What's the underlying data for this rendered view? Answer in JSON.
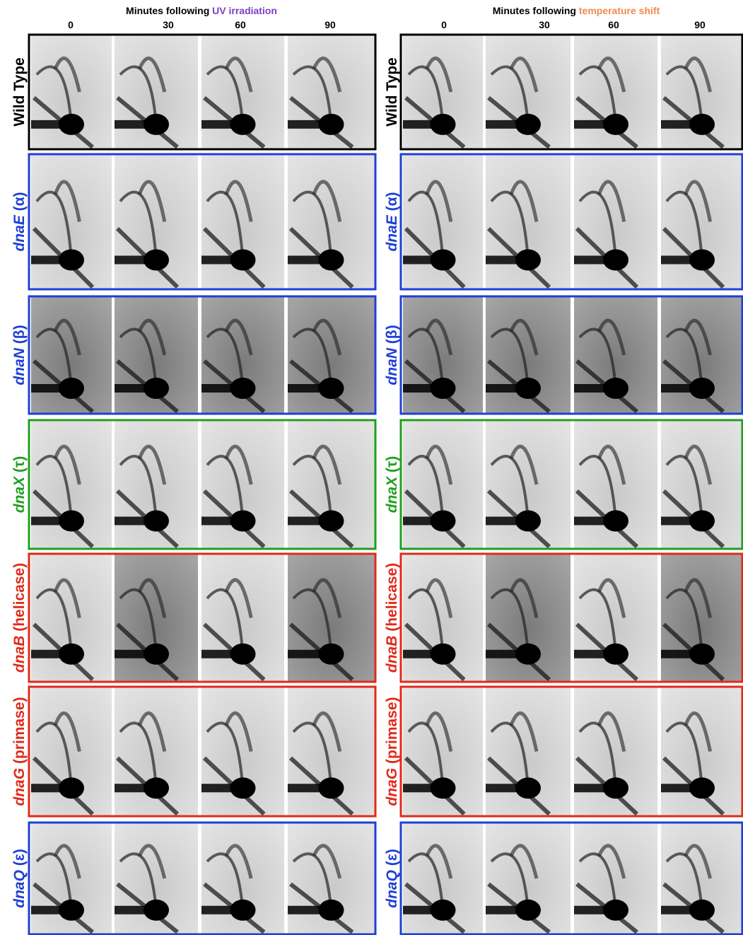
{
  "panels": [
    {
      "header": {
        "prefix": "Minutes following",
        "highlight": "UV irradiation",
        "highlight_color": "#7b3fc4"
      },
      "timepoints": [
        "0",
        "30",
        "60",
        "90"
      ]
    },
    {
      "header": {
        "prefix": "Minutes following",
        "highlight": "temperature shift",
        "highlight_color": "#f08a4b"
      },
      "timepoints": [
        "0",
        "30",
        "60",
        "90"
      ]
    }
  ],
  "rows": [
    {
      "gene": "Wild Type",
      "italic": false,
      "color": "#000000"
    },
    {
      "gene": "dnaE",
      "protein": "(α)",
      "italic": true,
      "color": "#1f3fd6"
    },
    {
      "gene": "dnaN",
      "protein": "(β)",
      "italic": true,
      "color": "#1f3fd6"
    },
    {
      "gene": "dnaX",
      "protein": "(τ)",
      "italic": true,
      "color": "#1fa01f"
    },
    {
      "gene": "dnaB",
      "protein": "(helicase)",
      "italic": true,
      "color": "#e02a1a"
    },
    {
      "gene": "dnaG",
      "protein": "(primase)",
      "italic": true,
      "color": "#e02a1a"
    },
    {
      "gene": "dnaQ",
      "protein": "(ε)",
      "italic": true,
      "color": "#1f3fd6"
    }
  ]
}
